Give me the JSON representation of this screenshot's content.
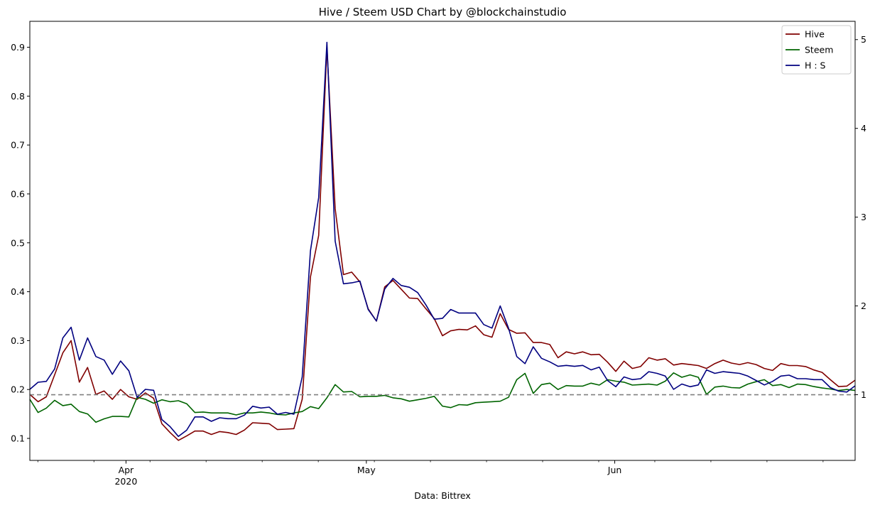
{
  "chart_data": {
    "type": "line",
    "title": "Hive / Steem USD Chart by @blockchainstudio",
    "xlabel": "Data: Bittrex",
    "ylabel": "",
    "y2label": "",
    "x_start": "2020-03-20",
    "x_end": "2020-07-01",
    "xlim": [
      "2020-03-20",
      "2020-07-01"
    ],
    "ylim": [
      0.055,
      0.953
    ],
    "y2lim": [
      0.26,
      5.206
    ],
    "xticks_major": [
      {
        "date": "2020-04-01",
        "label": "Apr",
        "sublabel": "2020"
      },
      {
        "date": "2020-05-01",
        "label": "May",
        "sublabel": ""
      },
      {
        "date": "2020-06-01",
        "label": "Jun",
        "sublabel": ""
      }
    ],
    "yticks": [
      "0.1",
      "0.2",
      "0.3",
      "0.4",
      "0.5",
      "0.6",
      "0.7",
      "0.8",
      "0.9"
    ],
    "y2ticks": [
      "1",
      "2",
      "3",
      "4",
      "5"
    ],
    "reference_line": {
      "axis": "right",
      "value": 1,
      "style": "dashed",
      "color": "#808080"
    },
    "legend_position": "top-right",
    "grid": false,
    "series": [
      {
        "name": "Hive",
        "axis": "left",
        "color": "#800000",
        "values": [
          0.19,
          0.175,
          0.185,
          0.23,
          0.275,
          0.3,
          0.215,
          0.245,
          0.19,
          0.197,
          0.18,
          0.2,
          0.185,
          0.18,
          0.193,
          0.182,
          0.13,
          0.112,
          0.096,
          0.105,
          0.115,
          0.115,
          0.108,
          0.114,
          0.112,
          0.108,
          0.117,
          0.132,
          0.131,
          0.13,
          0.118,
          0.119,
          0.12,
          0.18,
          0.43,
          0.515,
          0.9,
          0.57,
          0.435,
          0.44,
          0.42,
          0.365,
          0.34,
          0.41,
          0.423,
          0.405,
          0.387,
          0.386,
          0.365,
          0.345,
          0.31,
          0.32,
          0.323,
          0.322,
          0.33,
          0.312,
          0.307,
          0.355,
          0.323,
          0.315,
          0.316,
          0.296,
          0.296,
          0.292,
          0.265,
          0.277,
          0.273,
          0.277,
          0.271,
          0.272,
          0.256,
          0.237,
          0.258,
          0.243,
          0.247,
          0.265,
          0.26,
          0.263,
          0.25,
          0.253,
          0.251,
          0.249,
          0.243,
          0.253,
          0.26,
          0.254,
          0.251,
          0.255,
          0.251,
          0.243,
          0.239,
          0.253,
          0.249,
          0.249,
          0.247,
          0.24,
          0.235,
          0.22,
          0.206,
          0.207,
          0.219
        ]
      },
      {
        "name": "Steem",
        "axis": "left",
        "color": "#006400",
        "values": [
          0.18,
          0.153,
          0.162,
          0.178,
          0.167,
          0.17,
          0.155,
          0.15,
          0.133,
          0.14,
          0.145,
          0.145,
          0.144,
          0.184,
          0.18,
          0.172,
          0.179,
          0.175,
          0.177,
          0.171,
          0.153,
          0.154,
          0.152,
          0.152,
          0.152,
          0.148,
          0.152,
          0.152,
          0.154,
          0.152,
          0.149,
          0.148,
          0.152,
          0.155,
          0.165,
          0.161,
          0.183,
          0.21,
          0.195,
          0.196,
          0.185,
          0.186,
          0.186,
          0.188,
          0.183,
          0.181,
          0.176,
          0.179,
          0.182,
          0.186,
          0.166,
          0.163,
          0.169,
          0.168,
          0.173,
          0.174,
          0.175,
          0.176,
          0.184,
          0.22,
          0.233,
          0.192,
          0.21,
          0.213,
          0.2,
          0.208,
          0.207,
          0.207,
          0.213,
          0.209,
          0.22,
          0.217,
          0.215,
          0.209,
          0.21,
          0.211,
          0.209,
          0.217,
          0.234,
          0.225,
          0.23,
          0.225,
          0.19,
          0.205,
          0.207,
          0.204,
          0.203,
          0.211,
          0.216,
          0.22,
          0.208,
          0.21,
          0.204,
          0.211,
          0.21,
          0.206,
          0.203,
          0.201,
          0.198,
          0.2,
          0.198
        ]
      },
      {
        "name": "H : S",
        "axis": "right",
        "color": "#000080",
        "values": [
          1.06,
          1.14,
          1.15,
          1.29,
          1.64,
          1.76,
          1.39,
          1.64,
          1.43,
          1.39,
          1.23,
          1.38,
          1.27,
          0.97,
          1.06,
          1.05,
          0.72,
          0.64,
          0.53,
          0.6,
          0.75,
          0.75,
          0.7,
          0.74,
          0.73,
          0.73,
          0.77,
          0.87,
          0.85,
          0.86,
          0.78,
          0.8,
          0.78,
          1.2,
          2.62,
          3.22,
          4.97,
          2.73,
          2.25,
          2.26,
          2.28,
          1.96,
          1.83,
          2.19,
          2.31,
          2.23,
          2.21,
          2.15,
          2.01,
          1.85,
          1.86,
          1.96,
          1.92,
          1.92,
          1.92,
          1.79,
          1.75,
          2.0,
          1.75,
          1.43,
          1.35,
          1.54,
          1.41,
          1.37,
          1.32,
          1.33,
          1.32,
          1.33,
          1.28,
          1.31,
          1.16,
          1.09,
          1.2,
          1.17,
          1.18,
          1.26,
          1.24,
          1.21,
          1.06,
          1.12,
          1.09,
          1.11,
          1.28,
          1.24,
          1.26,
          1.25,
          1.24,
          1.21,
          1.16,
          1.11,
          1.15,
          1.21,
          1.22,
          1.18,
          1.18,
          1.17,
          1.17,
          1.08,
          1.04,
          1.03,
          1.1
        ]
      }
    ]
  }
}
